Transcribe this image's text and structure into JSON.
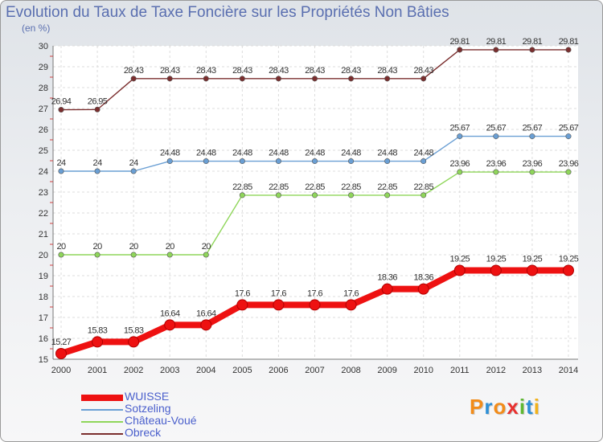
{
  "chart_data": {
    "type": "line",
    "title": "Evolution du Taux de Taxe Foncière sur les Propriétés Non Bâties",
    "ylabel": "(en %)",
    "xlabel": "",
    "ylim": [
      15,
      30
    ],
    "yticks": [
      "15",
      "16",
      "17",
      "18",
      "19",
      "20",
      "21",
      "22",
      "23",
      "24",
      "25",
      "26",
      "27",
      "28",
      "29",
      "30"
    ],
    "x": [
      "2000",
      "2001",
      "2002",
      "2003",
      "2004",
      "2005",
      "2006",
      "2007",
      "2008",
      "2009",
      "2010",
      "2011",
      "2012",
      "2013",
      "2014"
    ],
    "grid": true,
    "legend_position": "bottom-left",
    "series": [
      {
        "name": "WUISSE",
        "color": "#ee1111",
        "values": [
          15.27,
          15.83,
          15.83,
          16.64,
          16.64,
          17.6,
          17.6,
          17.6,
          17.6,
          18.36,
          18.36,
          19.25,
          19.25,
          19.25,
          19.25
        ],
        "labels": [
          "15.27",
          "15.83",
          "15.83",
          "16.64",
          "16.64",
          "17.6",
          "17.6",
          "17.6",
          "17.6",
          "18.36",
          "18.36",
          "19.25",
          "19.25",
          "19.25",
          "19.25"
        ]
      },
      {
        "name": "Sotzeling",
        "color": "#6a9fd4",
        "values": [
          24,
          24,
          24,
          24.48,
          24.48,
          24.48,
          24.48,
          24.48,
          24.48,
          24.48,
          24.48,
          25.67,
          25.67,
          25.67,
          25.67
        ],
        "labels": [
          "24",
          "24",
          "24",
          "24.48",
          "24.48",
          "24.48",
          "24.48",
          "24.48",
          "24.48",
          "24.48",
          "24.48",
          "25.67",
          "25.67",
          "25.67",
          "25.67"
        ]
      },
      {
        "name": "Château-Voué",
        "color": "#8fd65a",
        "values": [
          20,
          20,
          20,
          20,
          20,
          22.85,
          22.85,
          22.85,
          22.85,
          22.85,
          22.85,
          23.96,
          23.96,
          23.96,
          23.96
        ],
        "labels": [
          "20",
          "20",
          "20",
          "20",
          "20",
          "22.85",
          "22.85",
          "22.85",
          "22.85",
          "22.85",
          "22.85",
          "23.96",
          "23.96",
          "23.96",
          "23.96"
        ]
      },
      {
        "name": "Obreck",
        "color": "#7b2e2e",
        "values": [
          26.94,
          26.95,
          28.43,
          28.43,
          28.43,
          28.43,
          28.43,
          28.43,
          28.43,
          28.43,
          28.43,
          29.81,
          29.81,
          29.81,
          29.81
        ],
        "labels": [
          "26.94",
          "26.95",
          "28.43",
          "28.43",
          "28.43",
          "28.43",
          "28.43",
          "28.43",
          "28.43",
          "28.43",
          "28.43",
          "29.81",
          "29.81",
          "29.81",
          "29.81"
        ]
      }
    ]
  },
  "logo": {
    "letters": [
      "P",
      "r",
      "o",
      "x",
      "i",
      "t",
      "i"
    ],
    "colors": [
      "#f28c1a",
      "#2d8fd6",
      "#f28c1a",
      "#e8312f",
      "#5fb832",
      "#2d8fd6",
      "#f2b21a"
    ]
  }
}
